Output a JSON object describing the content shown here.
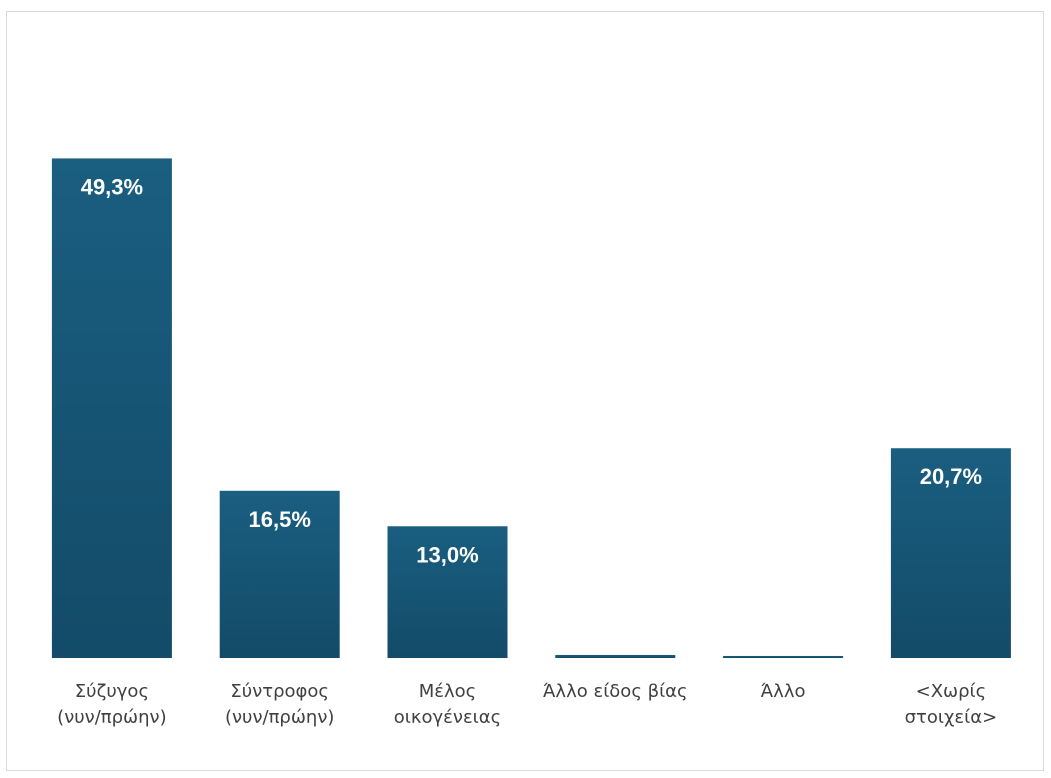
{
  "chart_data": {
    "type": "bar",
    "categories": [
      [
        "Σύζυγος",
        "(νυν/πρώην)"
      ],
      [
        "Σύντροφος",
        "(νυν/πρώην)"
      ],
      [
        "Μέλος",
        "οικογένειας"
      ],
      [
        "Άλλο είδος βίας"
      ],
      [
        "Άλλο"
      ],
      [
        "<Χωρίς",
        "στοιχεία>"
      ]
    ],
    "values": [
      49.3,
      16.5,
      13.0,
      0.3,
      0.2,
      20.7
    ],
    "value_labels": [
      "49,3%",
      "16,5%",
      "13,0%",
      "",
      "",
      "20,7%"
    ],
    "ylim": [
      0,
      60
    ],
    "bar_color_top": "#1a5e80",
    "bar_color_bottom": "#134b68",
    "label_color": "#404040",
    "border_color": "#d9d9d9",
    "grid": false
  }
}
